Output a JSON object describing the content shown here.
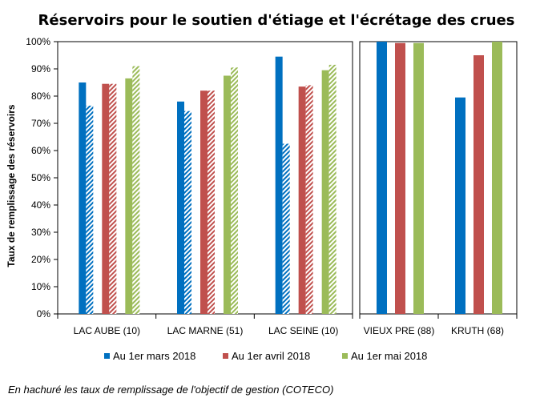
{
  "chart_data": {
    "type": "bar",
    "title": "Réservoirs pour le soutien d'étiage et l'écrétage des crues",
    "ylabel": "Taux de remplissage des réservoirs",
    "xlabel": "",
    "ylim": [
      0,
      100
    ],
    "y_ticks": [
      "0%",
      "10%",
      "20%",
      "30%",
      "40%",
      "50%",
      "60%",
      "70%",
      "80%",
      "90%",
      "100%"
    ],
    "categories": [
      "LAC AUBE (10)",
      "LAC MARNE (51)",
      "LAC SEINE (10)",
      "VIEUX PRE (88)",
      "KRUTH (68)"
    ],
    "groups": [
      {
        "categories": [
          "LAC AUBE (10)",
          "LAC MARNE (51)",
          "LAC SEINE (10)"
        ]
      },
      {
        "categories": [
          "VIEUX PRE (88)",
          "KRUTH (68)"
        ]
      }
    ],
    "series": [
      {
        "name": "Au 1er mars 2018",
        "color": "#0070C0",
        "values": [
          85,
          78,
          94.5,
          100,
          79.5
        ],
        "objective": [
          76.5,
          74.5,
          62.5,
          null,
          null
        ]
      },
      {
        "name": "Au 1er avril 2018",
        "color": "#C0504D",
        "values": [
          84.5,
          82,
          83.5,
          99.5,
          95
        ],
        "objective": [
          84.5,
          82,
          84,
          null,
          null
        ]
      },
      {
        "name": "Au 1er mai 2018",
        "color": "#9BBB59",
        "values": [
          86.5,
          87.5,
          89.5,
          99.5,
          100
        ],
        "objective": [
          91,
          90.5,
          91.5,
          null,
          null
        ]
      }
    ],
    "grid": false,
    "legend_position": "bottom"
  },
  "footnote": "En hachuré les taux de remplissage de l'objectif de gestion (COTECO)"
}
